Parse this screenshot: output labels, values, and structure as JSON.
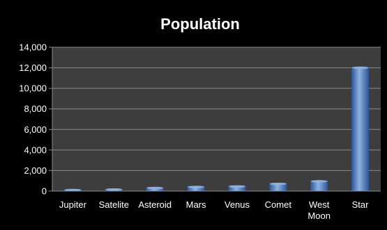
{
  "chart_data": {
    "type": "bar",
    "title": "Population",
    "xlabel": "",
    "ylabel": "",
    "categories": [
      "Jupiter",
      "Satelite",
      "Asteroid",
      "Mars",
      "Venus",
      "Comet",
      "West Moon",
      "Star"
    ],
    "category_lines": [
      [
        "Jupiter"
      ],
      [
        "Satelite"
      ],
      [
        "Asteroid"
      ],
      [
        "Mars"
      ],
      [
        "Venus"
      ],
      [
        "Comet"
      ],
      [
        "West",
        "Moon"
      ],
      [
        "Star"
      ]
    ],
    "values": [
      200,
      250,
      400,
      500,
      550,
      800,
      1050,
      12100
    ],
    "ylim": [
      0,
      14000
    ],
    "yticks": [
      0,
      2000,
      4000,
      6000,
      8000,
      10000,
      12000,
      14000
    ],
    "ytick_labels": [
      "0",
      "2,000",
      "4,000",
      "6,000",
      "8,000",
      "10,000",
      "12,000",
      "14,000"
    ],
    "grid": true,
    "legend": "none",
    "colors": {
      "background": "#000000",
      "plot_background": "#3d3d3d",
      "grid": "#8a8a8a",
      "bar": "#4f81bd",
      "bar_light": "#8db3e2",
      "bar_dark": "#2f5597",
      "text": "#ffffff"
    }
  }
}
